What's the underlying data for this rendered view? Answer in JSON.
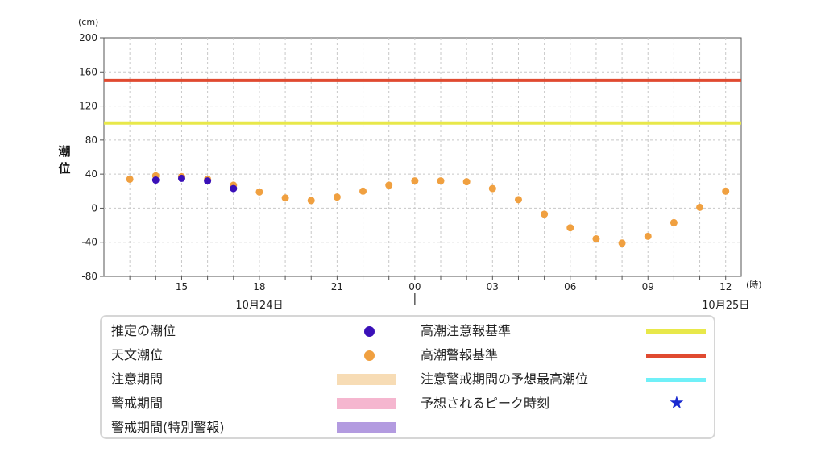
{
  "chart_data": {
    "type": "scatter",
    "y_unit": "(cm)",
    "ylabel": "潮位",
    "x_unit": "(時)",
    "ylim": [
      -80,
      200
    ],
    "yticks": [
      -80,
      -40,
      0,
      40,
      80,
      120,
      160,
      200
    ],
    "x_tick_labels": [
      "15",
      "18",
      "21",
      "00",
      "03",
      "06",
      "09",
      "12"
    ],
    "x_tick_hours": [
      15,
      18,
      21,
      24,
      27,
      30,
      33,
      36
    ],
    "date_labels": [
      {
        "label": "10月24日",
        "hour": 18
      },
      {
        "label": "10月25日",
        "hour": 36
      }
    ],
    "grid": true,
    "thresholds": [
      {
        "name": "高潮注意報基準",
        "value": 100,
        "color": "#e8e84a"
      },
      {
        "name": "高潮警報基準",
        "value": 150,
        "color": "#e04a30"
      }
    ],
    "series": [
      {
        "name": "天文潮位",
        "color": "#f0a040",
        "points": [
          [
            13,
            34
          ],
          [
            14,
            38
          ],
          [
            15,
            37
          ],
          [
            16,
            34
          ],
          [
            17,
            27
          ],
          [
            18,
            19
          ],
          [
            19,
            12
          ],
          [
            20,
            9
          ],
          [
            21,
            13
          ],
          [
            22,
            20
          ],
          [
            23,
            27
          ],
          [
            24,
            32
          ],
          [
            25,
            32
          ],
          [
            26,
            31
          ],
          [
            27,
            23
          ],
          [
            28,
            10
          ],
          [
            29,
            -7
          ],
          [
            30,
            -23
          ],
          [
            31,
            -36
          ],
          [
            32,
            -41
          ],
          [
            33,
            -33
          ],
          [
            34,
            -17
          ],
          [
            35,
            1
          ],
          [
            36,
            20
          ]
        ]
      },
      {
        "name": "推定の潮位",
        "color": "#3a10b8",
        "points": [
          [
            14,
            33
          ],
          [
            15,
            35
          ],
          [
            16,
            32
          ],
          [
            17,
            23
          ]
        ]
      }
    ]
  },
  "legend": {
    "left": [
      {
        "label": "推定の潮位",
        "kind": "dot",
        "color": "#3a10b8"
      },
      {
        "label": "天文潮位",
        "kind": "dot",
        "color": "#f0a040"
      },
      {
        "label": "注意期間",
        "kind": "rect",
        "color": "#f7dcb5"
      },
      {
        "label": "警戒期間",
        "kind": "rect",
        "color": "#f5b6cf"
      },
      {
        "label": "警戒期間(特別警報)",
        "kind": "rect",
        "color": "#b39be0"
      }
    ],
    "right": [
      {
        "label": "高潮注意報基準",
        "kind": "line",
        "color": "#e8e84a"
      },
      {
        "label": "高潮警報基準",
        "kind": "line",
        "color": "#e04a30"
      },
      {
        "label": "注意警戒期間の予想最高潮位",
        "kind": "line",
        "color": "#70f0f8"
      },
      {
        "label": "予想されるピーク時刻",
        "kind": "star",
        "color": "#1a2ad0",
        "symbol": "★"
      }
    ]
  }
}
